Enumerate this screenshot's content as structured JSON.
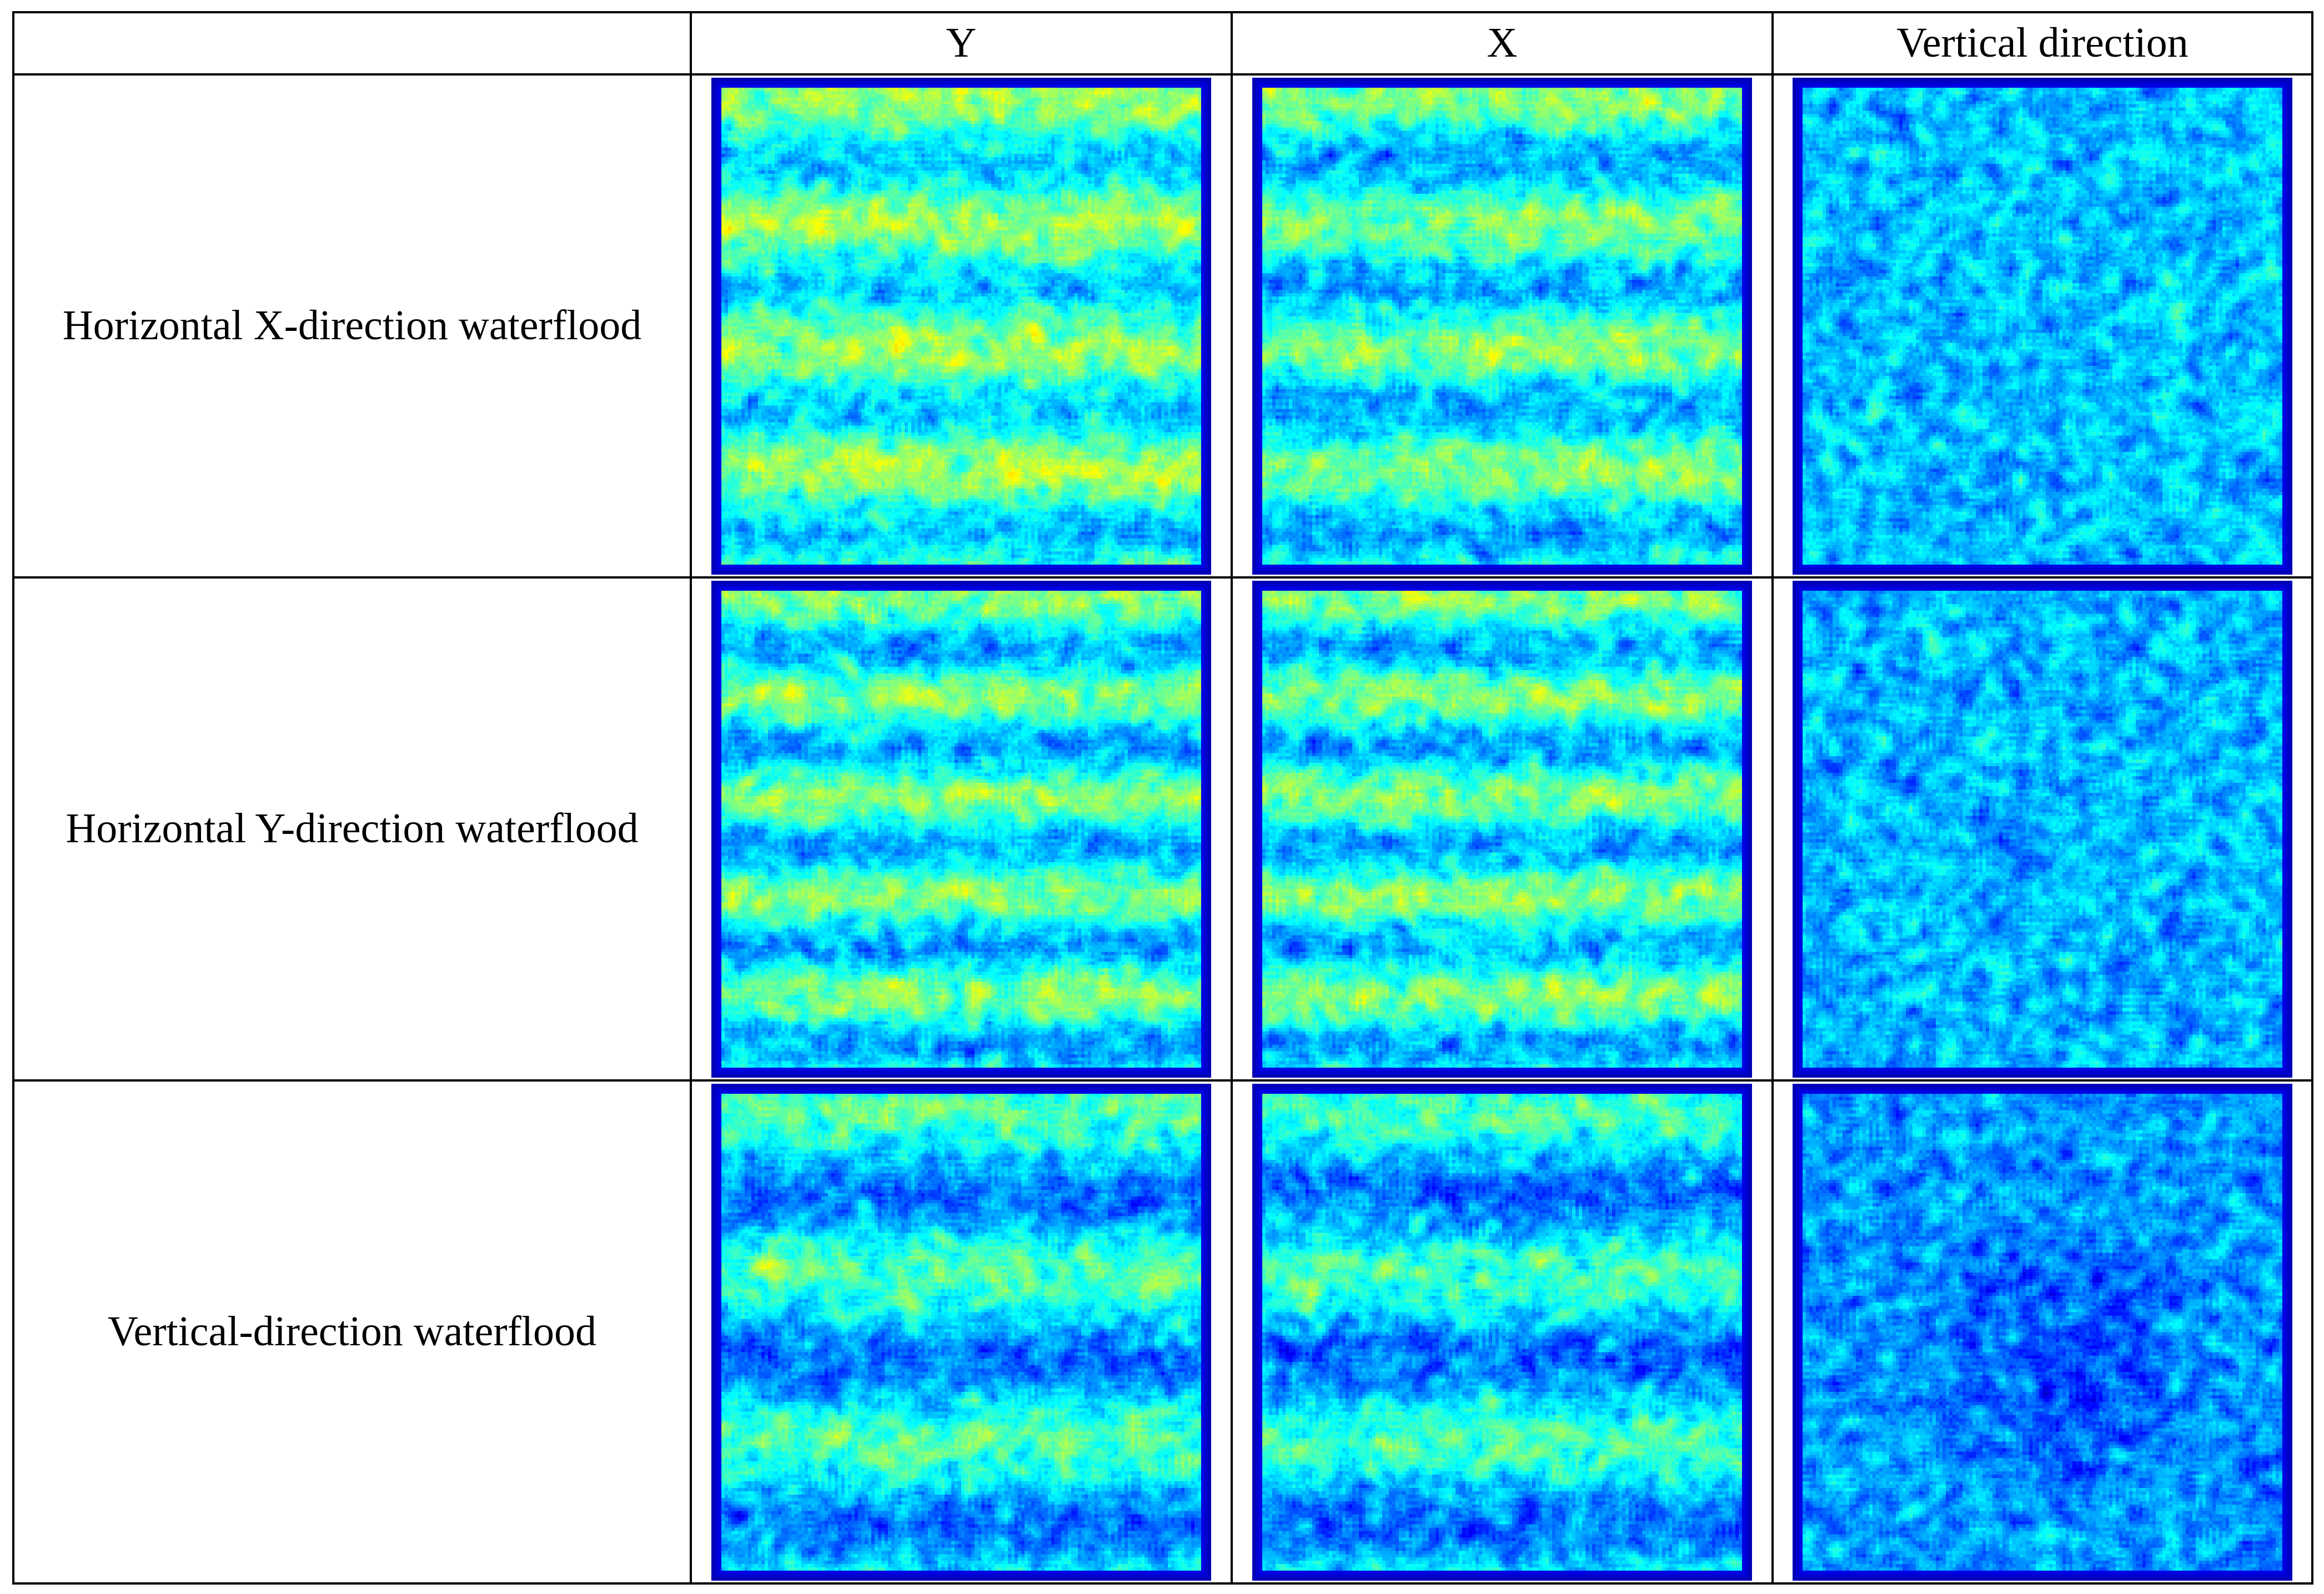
{
  "table": {
    "corner": "",
    "columns": [
      "Y",
      "X",
      "Vertical direction"
    ],
    "rows": [
      "Horizontal X-direction waterflood",
      "Horizontal Y-direction waterflood",
      "Vertical-direction waterflood"
    ]
  },
  "panels": [
    [
      {
        "pattern": "horizontal-bands",
        "bands": 4,
        "intensity": 0.62
      },
      {
        "pattern": "horizontal-bands",
        "bands": 4,
        "intensity": 0.55
      },
      {
        "pattern": "speckle",
        "bands": 0,
        "intensity": 0.38
      }
    ],
    [
      {
        "pattern": "horizontal-bands",
        "bands": 5,
        "intensity": 0.55
      },
      {
        "pattern": "horizontal-bands",
        "bands": 5,
        "intensity": 0.55
      },
      {
        "pattern": "speckle",
        "bands": 0,
        "intensity": 0.36
      }
    ],
    [
      {
        "pattern": "horizontal-bands",
        "bands": 3,
        "intensity": 0.45
      },
      {
        "pattern": "horizontal-bands",
        "bands": 3,
        "intensity": 0.42
      },
      {
        "pattern": "speckle-dark-center",
        "bands": 0,
        "intensity": 0.3
      }
    ]
  ],
  "colormap": [
    "#00008f",
    "#0000ff",
    "#0080ff",
    "#00ffff",
    "#80ff80",
    "#ffff00",
    "#ff8000",
    "#ff0000"
  ]
}
